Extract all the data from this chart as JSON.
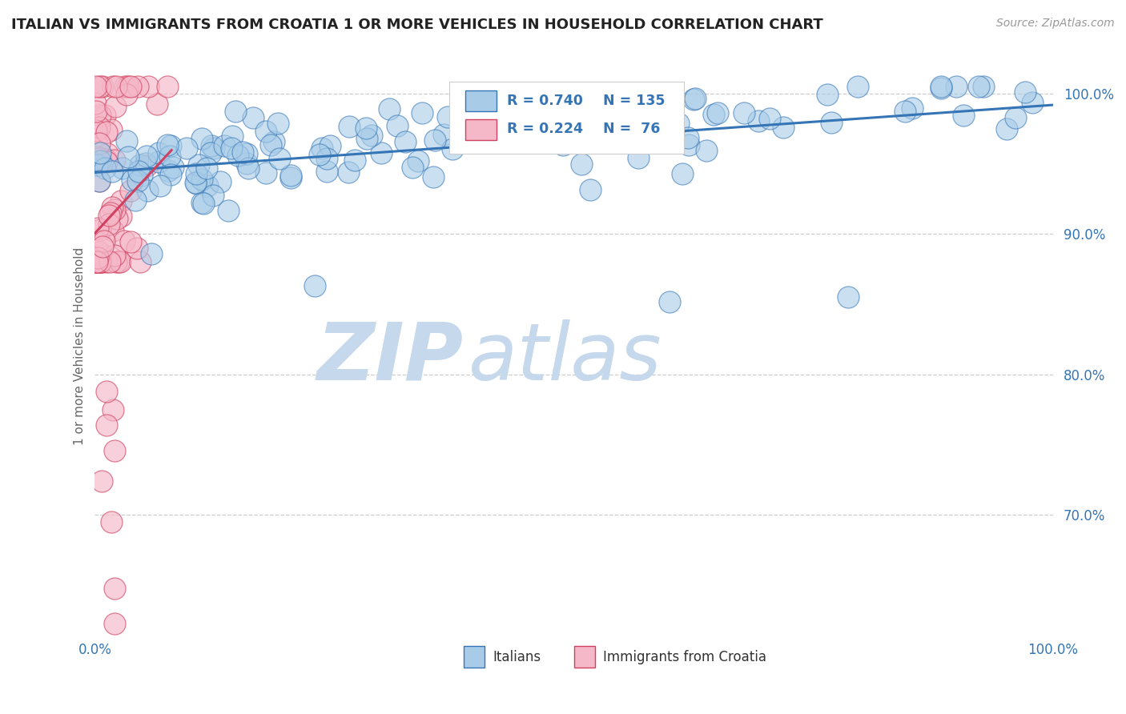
{
  "title": "ITALIAN VS IMMIGRANTS FROM CROATIA 1 OR MORE VEHICLES IN HOUSEHOLD CORRELATION CHART",
  "source": "Source: ZipAtlas.com",
  "ylabel": "1 or more Vehicles in Household",
  "ytick_labels": [
    "70.0%",
    "80.0%",
    "90.0%",
    "100.0%"
  ],
  "ytick_values": [
    0.7,
    0.8,
    0.9,
    1.0
  ],
  "legend_label_blue": "Italians",
  "legend_label_pink": "Immigrants from Croatia",
  "legend_r_blue": "R = 0.740",
  "legend_n_blue": "N = 135",
  "legend_r_pink": "R = 0.224",
  "legend_n_pink": "N =  76",
  "blue_color": "#A8CCE8",
  "pink_color": "#F5B8C8",
  "trend_blue": "#3575B5",
  "trend_pink": "#D04060",
  "background_color": "#FFFFFF",
  "watermark_zip": "ZIP",
  "watermark_atlas": "atlas",
  "watermark_color_zip": "#C5D8EC",
  "watermark_color_atlas": "#C5D8EC",
  "title_color": "#222222",
  "axis_label_color": "#3575B5",
  "n_blue": 135,
  "n_pink": 76,
  "xmin": 0.0,
  "xmax": 1.0,
  "ymin": 0.615,
  "ymax": 1.025
}
